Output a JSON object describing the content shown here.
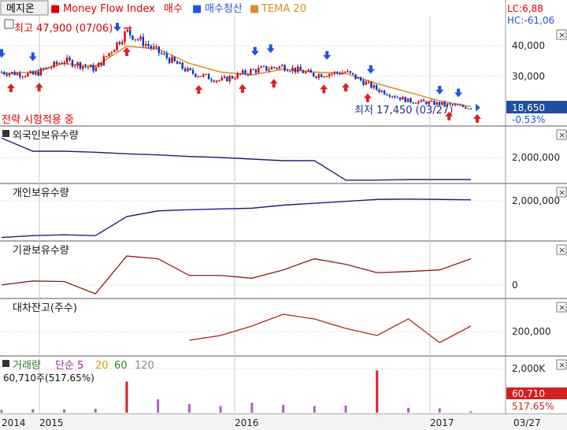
{
  "header": {
    "tab_label": "메지온",
    "indicator_label": "Money Flow Index",
    "buy_label": "매수",
    "buysell_label": "매수청산",
    "tema_label": "TEMA 20",
    "lc": "LC:6,88",
    "hc": "HC:-61,06"
  },
  "price_panel": {
    "high_label": "최고 47,900 (07/06)",
    "low_label": "최저 17,450 (03/27)",
    "strategy_label": "전략 시험적용 중",
    "price_ticks": [
      "40,000",
      "30,000"
    ],
    "current_price": "18,650",
    "change_pct": "-0.53%"
  },
  "panels": [
    {
      "key": "foreign",
      "title": "외국인보유수량",
      "tick": "2,000,000"
    },
    {
      "key": "individual",
      "title": "개인보유수량",
      "tick": "2,000,000"
    },
    {
      "key": "institution",
      "title": "기관보유수량",
      "tick": "0"
    },
    {
      "key": "loan",
      "title": "대차잔고(주수)",
      "tick": "200,000"
    }
  ],
  "volume_panel": {
    "title": "거래량",
    "ma_labels": [
      "단순 5",
      "20",
      "60",
      "120"
    ],
    "value_label": "60,710주(517.65%)",
    "tick": "2,000K",
    "badge_value": "60,710",
    "badge_pct": "517.65%"
  },
  "x_axis": {
    "labels": [
      "2014",
      "2015",
      "2016",
      "2017"
    ],
    "end_label": "03/27"
  },
  "colors": {
    "candle_up": "#d40000",
    "candle_down": "#0033cc",
    "tema": "#d98c2a",
    "holdings_line": "#1a237e",
    "institution_line": "#8b1a1a",
    "loan_line": "#b22222",
    "buy_arrow": "#e02020",
    "sell_arrow": "#2255dd",
    "badge_blue": "#1e4fa0",
    "badge_red": "#d42020"
  },
  "chart_data": [
    {
      "type": "line",
      "title": "Price (candlestick)",
      "x": [
        "2014-10",
        "2014-12",
        "2015-02",
        "2015-04",
        "2015-06",
        "2015-07",
        "2015-09",
        "2015-11",
        "2016-01",
        "2016-03",
        "2016-05",
        "2016-07",
        "2016-09",
        "2016-11",
        "2017-01",
        "2017-03"
      ],
      "series": [
        {
          "name": "TEMA 20",
          "values": [
            30500,
            31000,
            34000,
            33000,
            40000,
            39000,
            34000,
            31000,
            30000,
            32000,
            31000,
            30500,
            27000,
            24000,
            21000,
            19000
          ]
        }
      ],
      "close": [
        31000,
        30000,
        35000,
        32000,
        45000,
        38000,
        31000,
        28000,
        31500,
        33000,
        30000,
        31000,
        25000,
        21000,
        20000,
        18650
      ],
      "ylim": [
        15000,
        50000
      ],
      "annotations": {
        "high": 47900,
        "low": 17450,
        "current": 18650
      }
    },
    {
      "type": "line",
      "series": [
        {
          "name": "외국인보유수량",
          "values": [
            2550000,
            2300000,
            2300000,
            2280000,
            2250000,
            2230000,
            2200000,
            2180000,
            2150000,
            2120000,
            2120000,
            1750000,
            1750000,
            1760000,
            1760000,
            1760000
          ]
        }
      ]
    },
    {
      "type": "line",
      "series": [
        {
          "name": "개인보유수량",
          "values": [
            1150000,
            1200000,
            1220000,
            1200000,
            1700000,
            1850000,
            1880000,
            1900000,
            1920000,
            2000000,
            2050000,
            2100000,
            2150000,
            2160000,
            2150000,
            2140000
          ]
        }
      ]
    },
    {
      "type": "line",
      "series": [
        {
          "name": "기관보유수량",
          "values": [
            80000,
            150000,
            140000,
            -80000,
            600000,
            550000,
            250000,
            250000,
            200000,
            350000,
            550000,
            450000,
            300000,
            320000,
            350000,
            550000
          ]
        }
      ]
    },
    {
      "type": "line",
      "series": [
        {
          "name": "대차잔고(주수)",
          "values": [
            null,
            null,
            null,
            null,
            null,
            null,
            180000,
            200000,
            240000,
            290000,
            270000,
            230000,
            200000,
            270000,
            170000,
            240000
          ]
        }
      ]
    },
    {
      "type": "bar",
      "series": [
        {
          "name": "거래량",
          "values": [
            120000,
            160000,
            150000,
            180000,
            1400000,
            600000,
            400000,
            300000,
            450000,
            350000,
            300000,
            320000,
            1900000,
            220000,
            200000,
            60710
          ]
        }
      ]
    }
  ]
}
